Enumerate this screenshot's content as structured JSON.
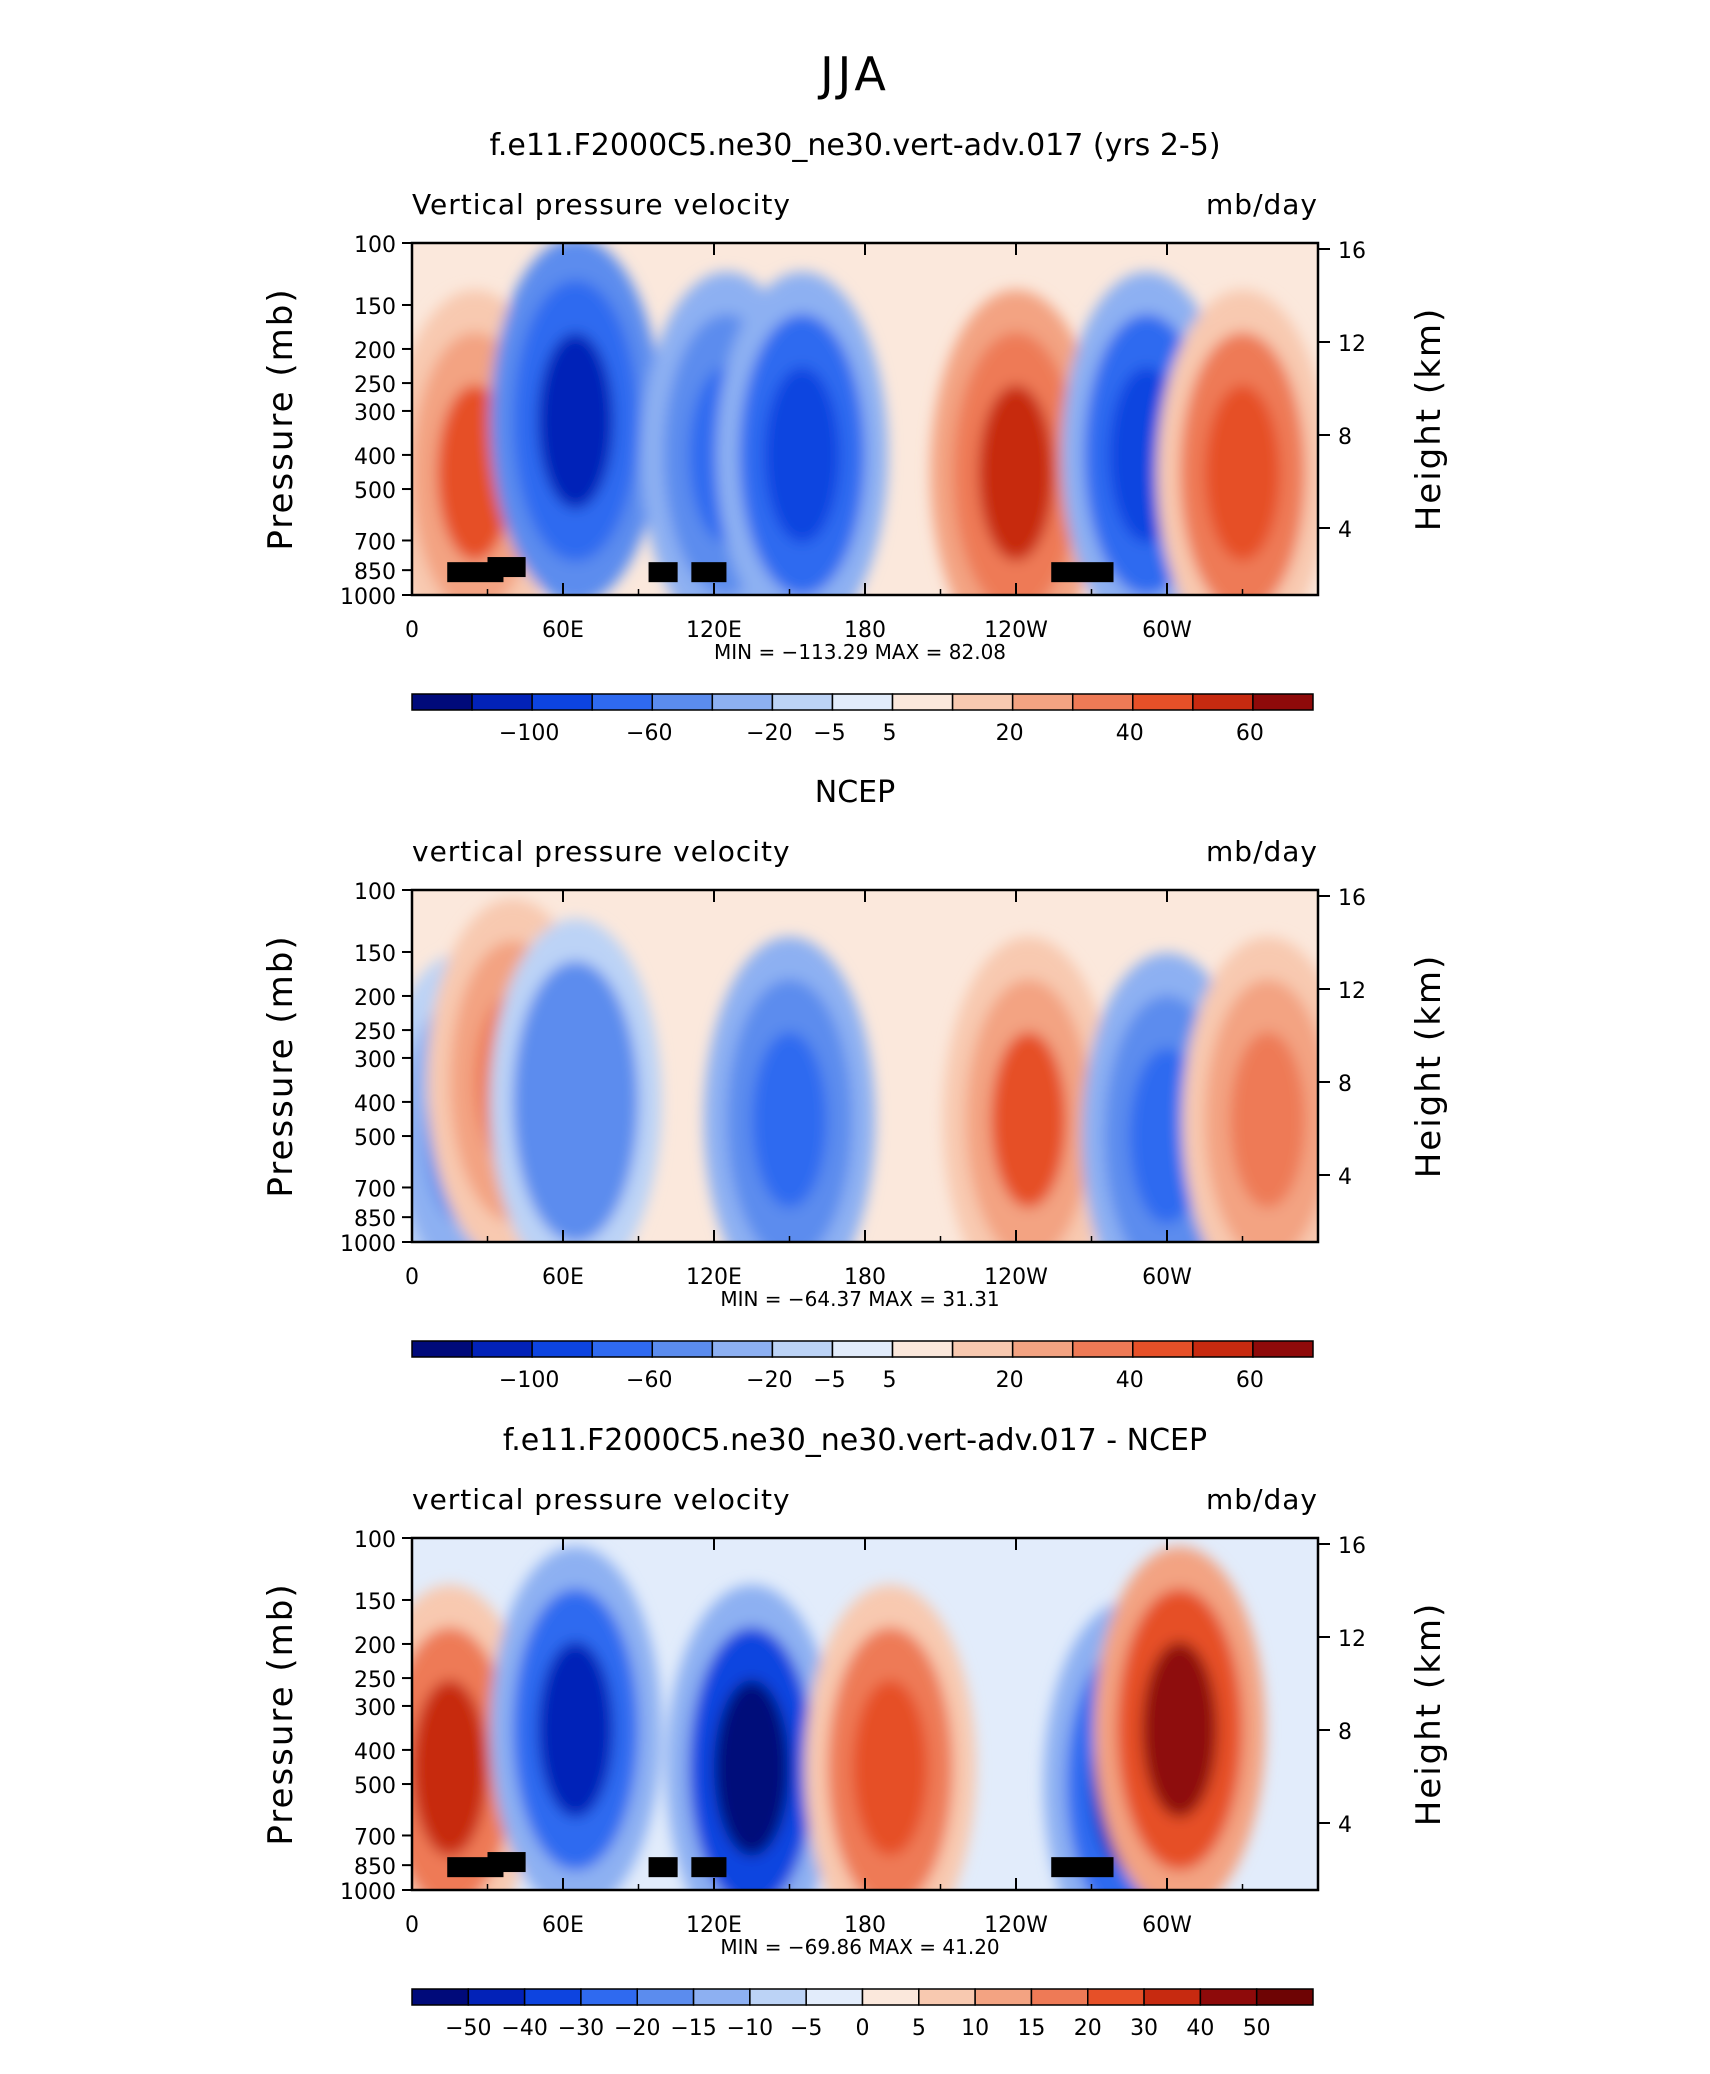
{
  "figure_title": "JJA",
  "colors": {
    "model_obs_bar": [
      "#000a7a",
      "#0222b8",
      "#0d44e0",
      "#2f6af0",
      "#5b8cee",
      "#8db0f2",
      "#bcd3f6",
      "#e2ecfb",
      "#fbe8dc",
      "#f8c9b0",
      "#f3a382",
      "#ee7a56",
      "#e65028",
      "#c72a10",
      "#8e0a0a"
    ],
    "diff_bar": [
      "#000a7a",
      "#0222b8",
      "#0d44e0",
      "#2f6af0",
      "#5b8cee",
      "#8db0f2",
      "#bcd3f6",
      "#e2ecfb",
      "#fbe8dc",
      "#f8c9b0",
      "#f3a382",
      "#ee7a56",
      "#e65028",
      "#c72a10",
      "#8e0a0a",
      "#6e0404"
    ]
  },
  "panels": [
    {
      "title": "f.e11.F2000C5.ne30_ne30.vert-adv.017 (yrs 2-5)",
      "left_label": "Vertical pressure velocity",
      "right_label": "mb/day",
      "y_label_left": "Pressure (mb)",
      "y_label_right": "Height (km)",
      "pressure_ticks": [
        "100",
        "150",
        "200",
        "250",
        "300",
        "400",
        "500",
        "700",
        "850",
        "1000"
      ],
      "height_ticks": [
        "16",
        "12",
        "8",
        "4"
      ],
      "x_ticks": [
        "0",
        "60E",
        "120E",
        "180",
        "120W",
        "60W"
      ],
      "minmax": "MIN = −113.29   MAX =   82.08",
      "colorbar_labels": [
        "−100",
        "−60",
        "−20",
        "−5",
        "5",
        "20",
        "40",
        "60"
      ]
    },
    {
      "title": "NCEP",
      "left_label": "vertical pressure velocity",
      "right_label": "mb/day",
      "y_label_left": "Pressure (mb)",
      "y_label_right": "Height (km)",
      "pressure_ticks": [
        "100",
        "150",
        "200",
        "250",
        "300",
        "400",
        "500",
        "700",
        "850",
        "1000"
      ],
      "height_ticks": [
        "16",
        "12",
        "8",
        "4"
      ],
      "x_ticks": [
        "0",
        "60E",
        "120E",
        "180",
        "120W",
        "60W"
      ],
      "minmax": "MIN = −64.37   MAX =   31.31",
      "colorbar_labels": [
        "−100",
        "−60",
        "−20",
        "−5",
        "5",
        "20",
        "40",
        "60"
      ]
    },
    {
      "title": "f.e11.F2000C5.ne30_ne30.vert-adv.017 - NCEP",
      "left_label": "vertical pressure velocity",
      "right_label": "mb/day",
      "y_label_left": "Pressure (mb)",
      "y_label_right": "Height (km)",
      "pressure_ticks": [
        "100",
        "150",
        "200",
        "250",
        "300",
        "400",
        "500",
        "700",
        "850",
        "1000"
      ],
      "height_ticks": [
        "16",
        "12",
        "8",
        "4"
      ],
      "x_ticks": [
        "0",
        "60E",
        "120E",
        "180",
        "120W",
        "60W"
      ],
      "minmax": "MIN = −69.86   MAX =   41.20",
      "colorbar_labels": [
        "−50",
        "−40",
        "−30",
        "−20",
        "−15",
        "−10",
        "−5",
        "0",
        "5",
        "10",
        "15",
        "20",
        "30",
        "40",
        "50"
      ]
    }
  ],
  "chart_data": [
    {
      "type": "heatmap",
      "title": "f.e11.F2000C5.ne30_ne30.vert-adv.017 (yrs 2-5)",
      "xlabel": "",
      "ylabel": "Pressure (mb)",
      "ylabel_right": "Height (km)",
      "x_range_lon": [
        0,
        360
      ],
      "y_range_mb": [
        1000,
        100
      ],
      "units": "mb/day",
      "min": -113.29,
      "max": 82.08,
      "levels": [
        -100,
        -80,
        -60,
        -40,
        -20,
        -10,
        -5,
        0,
        5,
        10,
        20,
        30,
        40,
        60,
        80
      ],
      "features": [
        {
          "lon": 25,
          "p": 450,
          "value": 30
        },
        {
          "lon": 65,
          "p": 320,
          "value": -100
        },
        {
          "lon": 125,
          "p": 400,
          "value": -60
        },
        {
          "lon": 155,
          "p": 400,
          "value": -70
        },
        {
          "lon": 240,
          "p": 450,
          "value": 40
        },
        {
          "lon": 292,
          "p": 400,
          "value": -80
        },
        {
          "lon": 330,
          "p": 450,
          "value": 35
        }
      ]
    },
    {
      "type": "heatmap",
      "title": "NCEP",
      "xlabel": "",
      "ylabel": "Pressure (mb)",
      "ylabel_right": "Height (km)",
      "x_range_lon": [
        0,
        360
      ],
      "y_range_mb": [
        1000,
        100
      ],
      "units": "mb/day",
      "min": -64.37,
      "max": 31.31,
      "levels": [
        -100,
        -80,
        -60,
        -40,
        -20,
        -10,
        -5,
        0,
        5,
        10,
        20,
        30,
        40,
        60,
        80
      ],
      "features": [
        {
          "lon": 20,
          "p": 500,
          "value": -30
        },
        {
          "lon": 40,
          "p": 350,
          "value": 25
        },
        {
          "lon": 65,
          "p": 400,
          "value": -40
        },
        {
          "lon": 150,
          "p": 450,
          "value": -55
        },
        {
          "lon": 245,
          "p": 450,
          "value": 30
        },
        {
          "lon": 300,
          "p": 500,
          "value": -50
        },
        {
          "lon": 340,
          "p": 450,
          "value": 25
        }
      ]
    },
    {
      "type": "heatmap",
      "title": "f.e11.F2000C5.ne30_ne30.vert-adv.017 - NCEP",
      "xlabel": "",
      "ylabel": "Pressure (mb)",
      "ylabel_right": "Height (km)",
      "x_range_lon": [
        0,
        360
      ],
      "y_range_mb": [
        1000,
        100
      ],
      "units": "mb/day",
      "min": -69.86,
      "max": 41.2,
      "levels": [
        -50,
        -40,
        -30,
        -20,
        -15,
        -10,
        -5,
        0,
        5,
        10,
        15,
        20,
        30,
        40,
        50
      ],
      "features": [
        {
          "lon": 15,
          "p": 450,
          "value": 30
        },
        {
          "lon": 65,
          "p": 350,
          "value": -50
        },
        {
          "lon": 135,
          "p": 450,
          "value": -60
        },
        {
          "lon": 190,
          "p": 450,
          "value": 25
        },
        {
          "lon": 285,
          "p": 500,
          "value": -50
        },
        {
          "lon": 305,
          "p": 350,
          "value": 40
        }
      ]
    }
  ]
}
